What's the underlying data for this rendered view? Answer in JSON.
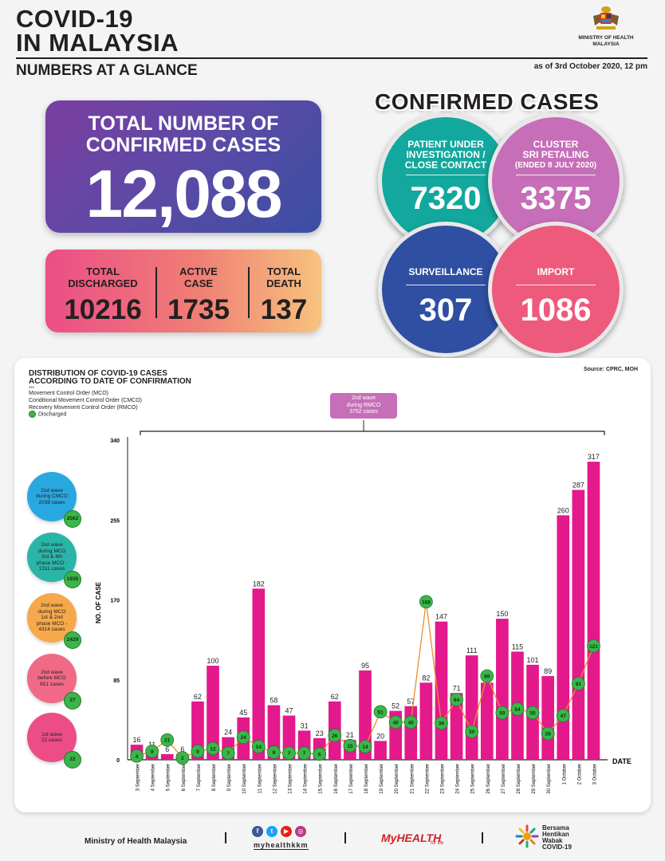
{
  "header": {
    "title_line1": "COVID-19",
    "title_line2": "IN MALAYSIA",
    "subtitle": "NUMBERS AT A GLANCE",
    "ministry_line1": "MINISTRY OF HEALTH",
    "ministry_line2": "MALAYSIA",
    "as_of": "as of 3rd October 2020, 12 pm"
  },
  "total": {
    "label_line1": "TOTAL NUMBER OF",
    "label_line2": "CONFIRMED CASES",
    "value": "12,088"
  },
  "stats": [
    {
      "label1": "TOTAL",
      "label2": "DISCHARGED",
      "value": "10216"
    },
    {
      "label1": "ACTIVE",
      "label2": "CASE",
      "value": "1735"
    },
    {
      "label1": "TOTAL",
      "label2": "DEATH",
      "value": "137"
    }
  ],
  "confirmed": {
    "heading": "CONFIRMED CASES",
    "circles": [
      {
        "line1": "PATIENT UNDER",
        "line2": "INVESTIGATION /",
        "line3": "CLOSE CONTACT",
        "value": "7320",
        "color": "#13a89e"
      },
      {
        "line1": "CLUSTER",
        "line2": "SRI PETALING",
        "line3": "(ENDED 8 JULY 2020)",
        "value": "3375",
        "color": "#c76eb8"
      },
      {
        "line1": "SURVEILLANCE",
        "line2": "",
        "line3": "",
        "value": "307",
        "color": "#2f4fa2"
      },
      {
        "line1": "IMPORT",
        "line2": "",
        "line3": "",
        "value": "1086",
        "color": "#ee5a7c"
      }
    ]
  },
  "chart_meta": {
    "title1": "DISTRIBUTION OF COVID-19 CASES",
    "title2": "ACCORDING TO DATE OF CONFIRMATION",
    "source": "Source: CPRC, MOH",
    "stars": "***",
    "legend_mco": "Movement Control Order (MCO)",
    "legend_cmco": "Conditional Movement Control Order (CMCO)",
    "legend_rmco": "Recovery Movement Control Order (RMCO)",
    "legend_discharged": "Discharged",
    "rmco_box1": "2nd wave",
    "rmco_box2": "during RMCO",
    "rmco_box3": "3752 cases",
    "date_label": "DATE"
  },
  "waves": [
    {
      "lines": [
        "2nd wave",
        "during CMCO",
        "2038 cases"
      ],
      "discharged": "2562",
      "color": "#29a8e0"
    },
    {
      "lines": [
        "2nd wave",
        "during MCO",
        "3rd & 4th",
        "phase MCO -",
        "1311 cases"
      ],
      "discharged": "1935",
      "color": "#2bb5a9"
    },
    {
      "lines": [
        "2nd wave",
        "during MCO",
        "1st & 2nd",
        "phase MCO -",
        "4314 cases"
      ],
      "discharged": "2429",
      "color": "#f6a84a"
    },
    {
      "lines": [
        "2nd wave",
        "before MCO",
        "651 cases"
      ],
      "discharged": "27",
      "color": "#f06a86"
    },
    {
      "lines": [
        "1st wave",
        "22 cases"
      ],
      "discharged": "22",
      "color": "#ec4d87"
    }
  ],
  "chart_data": {
    "type": "bar",
    "title": "DISTRIBUTION OF COVID-19 CASES ACCORDING TO DATE OF CONFIRMATION",
    "xlabel": "DATE",
    "ylabel": "NO. OF CASE",
    "ylim": [
      0,
      340
    ],
    "yticks": [
      0,
      85,
      170,
      255,
      340
    ],
    "categories": [
      "3 September",
      "4 September",
      "5 September",
      "6 September",
      "7 September",
      "8 September",
      "9 September",
      "10 September",
      "11 September",
      "12 September",
      "13 September",
      "14 September",
      "15 September",
      "16 September",
      "17 September",
      "18 September",
      "19 September",
      "20 September",
      "21 September",
      "22 September",
      "23 September",
      "24 September",
      "25 September",
      "26 September",
      "27 September",
      "28 September",
      "29 September",
      "30 September",
      "1 October",
      "2 October",
      "3 October"
    ],
    "series": [
      {
        "name": "Confirmed cases",
        "type": "bar",
        "color": "#e3198c",
        "values": [
          16,
          11,
          6,
          6,
          62,
          100,
          24,
          45,
          182,
          58,
          47,
          31,
          23,
          62,
          21,
          95,
          20,
          52,
          57,
          82,
          147,
          71,
          111,
          82,
          150,
          115,
          101,
          89,
          260,
          287,
          317
        ]
      },
      {
        "name": "Discharged",
        "type": "line",
        "color": "#f08c2e",
        "values": [
          4,
          9,
          21,
          2,
          9,
          12,
          7,
          24,
          14,
          8,
          7,
          7,
          6,
          26,
          15,
          14,
          51,
          40,
          40,
          168,
          39,
          64,
          30,
          89,
          50,
          54,
          50,
          28,
          47,
          81,
          121
        ]
      }
    ]
  },
  "footer": {
    "ministry": "Ministry of Health Malaysia",
    "handle": "myhealthkkm",
    "myhealth": "MyHEALTH",
    "myhealth_tag": "for life",
    "bh1": "Bersama",
    "bh2": "Hentikan",
    "bh3": "Wabak",
    "bh4": "COVID-19"
  }
}
